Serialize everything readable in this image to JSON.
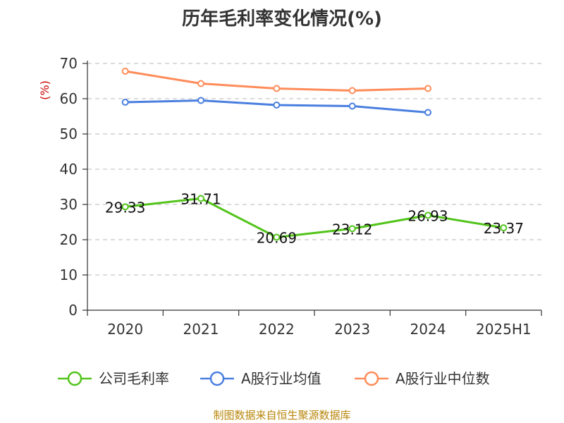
{
  "chart_data": {
    "type": "line",
    "title": "历年毛利率变化情况(%)",
    "ylabel": "(%)",
    "xlabel": "",
    "ylim": [
      0,
      70
    ],
    "yticks": [
      0,
      10,
      20,
      30,
      40,
      50,
      60,
      70
    ],
    "categories": [
      "2020",
      "2021",
      "2022",
      "2023",
      "2024",
      "2025H1"
    ],
    "grid": true,
    "legend": "bottom",
    "series": [
      {
        "name": "公司毛利率",
        "color": "#52c41a",
        "values": [
          29.33,
          31.71,
          20.69,
          23.12,
          26.93,
          23.37
        ],
        "labels": [
          "29.33",
          "31.71",
          "20.69",
          "23.12",
          "26.93",
          "23.37"
        ]
      },
      {
        "name": "A股行业均值",
        "color": "#4a7fe0",
        "values": [
          59.0,
          59.5,
          58.2,
          57.9,
          56.1,
          null
        ]
      },
      {
        "name": "A股行业中位数",
        "color": "#ff8c5a",
        "values": [
          67.8,
          64.3,
          62.9,
          62.3,
          62.9,
          null
        ]
      }
    ]
  },
  "footer": "制图数据来自恒生聚源数据库"
}
